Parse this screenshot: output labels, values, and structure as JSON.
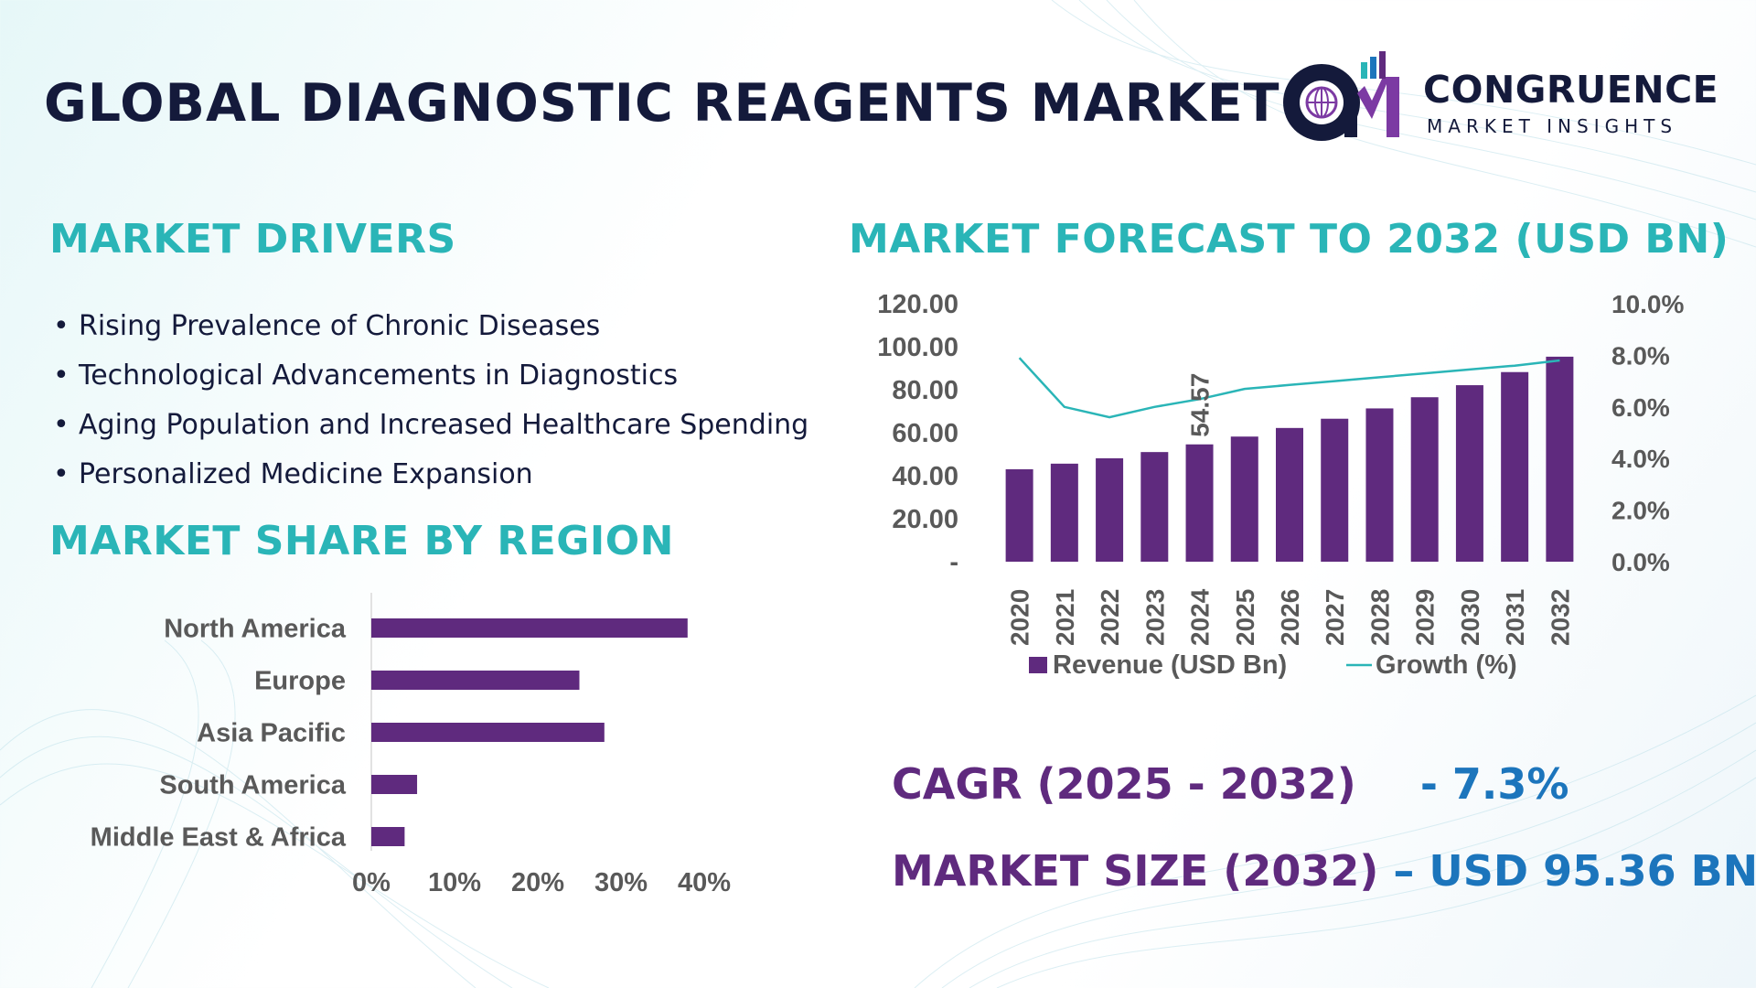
{
  "title": "GLOBAL DIAGNOSTIC REAGENTS MARKET",
  "logo": {
    "name": "CONGRUENCE",
    "tagline": "MARKET INSIGHTS"
  },
  "drivers": {
    "title": "MARKET DRIVERS",
    "items": [
      "Rising Prevalence of Chronic Diseases",
      "Technological Advancements in Diagnostics",
      "Aging Population and Increased Healthcare Spending",
      "Personalized Medicine Expansion"
    ]
  },
  "region_section": {
    "title": "MARKET SHARE BY REGION"
  },
  "forecast_section": {
    "title": "MARKET FORECAST TO 2032 (USD BN)"
  },
  "kpis": {
    "cagr_label": "CAGR (2025 - 2032)",
    "cagr_value": "- 7.3%",
    "size_label": "MARKET SIZE (2032)",
    "size_value": "– USD 95.36 BN"
  },
  "colors": {
    "title": "#141a3b",
    "accent_teal": "#2ab5b7",
    "bar_purple": "#5f2a7e",
    "kpi_purple": "#5f2a7e",
    "kpi_blue": "#1c75bc",
    "growth_line": "#2ab5b7"
  },
  "chart_data": [
    {
      "type": "bar",
      "orientation": "horizontal",
      "categories": [
        "North America",
        "Europe",
        "Asia Pacific",
        "South America",
        "Middle East & Africa"
      ],
      "values": [
        38,
        25,
        28,
        5.5,
        4
      ],
      "xlim": [
        0,
        40
      ],
      "x_ticks": [
        "0%",
        "10%",
        "20%",
        "30%",
        "40%"
      ],
      "grid": false,
      "color": "#5f2a7e"
    },
    {
      "type": "bar",
      "categories": [
        "2020",
        "2021",
        "2022",
        "2023",
        "2024",
        "2025",
        "2026",
        "2027",
        "2028",
        "2029",
        "2030",
        "2031",
        "2032"
      ],
      "series": [
        {
          "name": "Revenue (USD Bn)",
          "type": "bar",
          "axis": "left",
          "color": "#5f2a7e",
          "values": [
            43,
            45.6,
            48.1,
            51,
            54.57,
            58.2,
            62.2,
            66.5,
            71.3,
            76.5,
            82.1,
            88.2,
            95.36
          ]
        },
        {
          "name": "Growth (%)",
          "type": "line",
          "axis": "right",
          "color": "#2ab5b7",
          "values": [
            7.9,
            6.0,
            5.6,
            6.0,
            6.3,
            6.7,
            6.85,
            7.0,
            7.15,
            7.3,
            7.45,
            7.6,
            7.8
          ]
        }
      ],
      "y_left": {
        "range": [
          0,
          120
        ],
        "ticks": [
          "-",
          "20.00",
          "40.00",
          "60.00",
          "80.00",
          "100.00",
          "120.00"
        ]
      },
      "y_right": {
        "range": [
          0,
          10
        ],
        "ticks": [
          "0.0%",
          "2.0%",
          "4.0%",
          "6.0%",
          "8.0%",
          "10.0%"
        ]
      },
      "data_labels": [
        {
          "category": "2024",
          "text": "54.57"
        }
      ],
      "legend": "bottom",
      "grid": false
    }
  ]
}
